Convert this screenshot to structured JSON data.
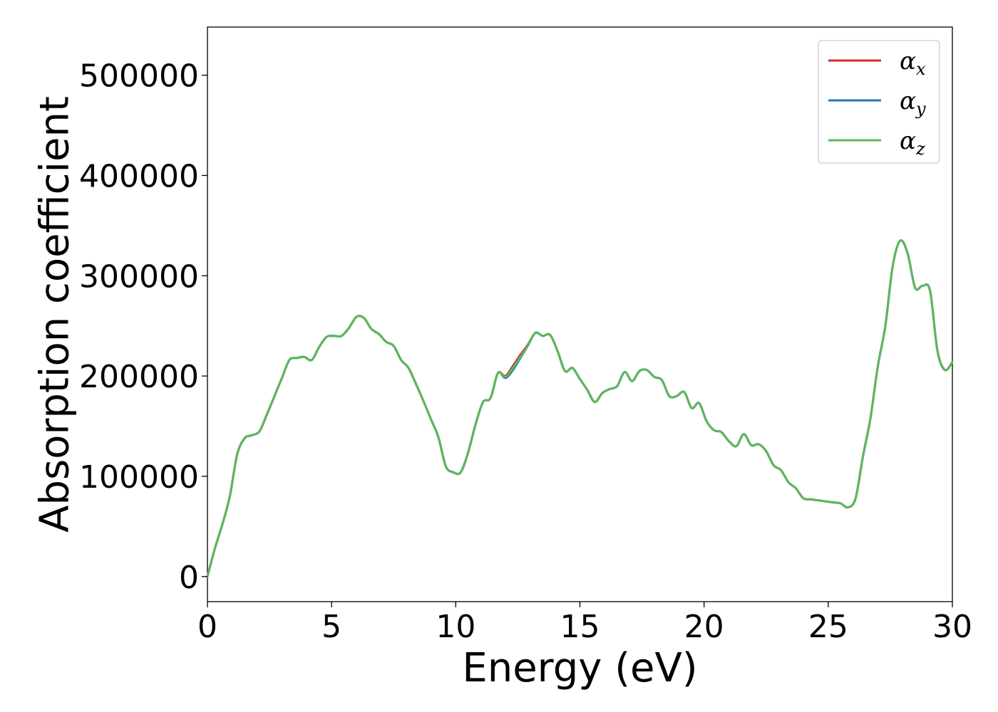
{
  "chart_data": {
    "type": "line",
    "xlabel": "Energy (eV)",
    "ylabel": "Absorption coefficient",
    "xlim": [
      0,
      30
    ],
    "ylim": [
      -25000,
      548000
    ],
    "xticks": [
      0,
      5,
      10,
      15,
      20,
      25,
      30
    ],
    "yticks": [
      0,
      100000,
      200000,
      300000,
      400000,
      500000
    ],
    "xtick_labels": [
      "0",
      "5",
      "10",
      "15",
      "20",
      "25",
      "30"
    ],
    "ytick_labels": [
      "0",
      "100000",
      "200000",
      "300000",
      "400000",
      "500000"
    ],
    "grid": false,
    "legend_position": "top-right",
    "x": [
      0,
      0.3,
      0.6,
      0.9,
      1.2,
      1.5,
      1.8,
      2.1,
      2.4,
      2.7,
      3.0,
      3.3,
      3.6,
      3.9,
      4.2,
      4.5,
      4.8,
      5.1,
      5.4,
      5.7,
      6.0,
      6.3,
      6.6,
      6.9,
      7.2,
      7.5,
      7.8,
      8.1,
      8.4,
      8.7,
      9.0,
      9.3,
      9.6,
      9.9,
      10.2,
      10.5,
      10.8,
      11.1,
      11.4,
      11.7,
      12.0,
      12.3,
      12.6,
      12.9,
      13.2,
      13.5,
      13.8,
      14.1,
      14.4,
      14.7,
      15.0,
      15.3,
      15.6,
      15.9,
      16.2,
      16.5,
      16.8,
      17.1,
      17.4,
      17.7,
      18.0,
      18.3,
      18.6,
      18.9,
      19.2,
      19.5,
      19.8,
      20.1,
      20.4,
      20.7,
      21.0,
      21.3,
      21.6,
      21.9,
      22.2,
      22.5,
      22.8,
      23.1,
      23.4,
      23.7,
      24.0,
      24.3,
      24.6,
      24.9,
      25.2,
      25.5,
      25.8,
      26.1,
      26.4,
      26.7,
      27.0,
      27.3,
      27.6,
      27.9,
      28.2,
      28.5,
      28.8,
      29.1,
      29.4,
      29.7,
      30.0
    ],
    "series": [
      {
        "name": "α",
        "subscript": "x",
        "color": "#d62728",
        "values": [
          0,
          28000,
          52000,
          80000,
          122000,
          138000,
          141000,
          145000,
          162000,
          180000,
          198000,
          216000,
          218000,
          219000,
          216000,
          229000,
          239000,
          240000,
          240000,
          248000,
          259000,
          258000,
          247000,
          242000,
          234000,
          230000,
          216000,
          208000,
          192000,
          175000,
          157000,
          139000,
          110000,
          104000,
          104000,
          124000,
          152000,
          174000,
          178000,
          203000,
          200000,
          210000,
          221000,
          231000,
          243000,
          240000,
          241000,
          225000,
          205000,
          208000,
          197000,
          186000,
          174000,
          183000,
          187000,
          190000,
          204000,
          195000,
          205000,
          206000,
          199000,
          196000,
          180000,
          180000,
          184000,
          168000,
          173000,
          155000,
          146000,
          144000,
          135000,
          130000,
          142000,
          131000,
          132000,
          125000,
          111000,
          106000,
          94000,
          88000,
          78000,
          77000,
          76000,
          75000,
          74000,
          73000,
          69000,
          78000,
          120000,
          158000,
          210000,
          250000,
          310000,
          335000,
          322000,
          288000,
          290000,
          285000,
          225000,
          206000,
          214000
        ]
      },
      {
        "name": "α",
        "subscript": "y",
        "color": "#1f77b4",
        "values": [
          0,
          28000,
          52000,
          80000,
          122000,
          138000,
          141000,
          145000,
          162000,
          180000,
          198000,
          216000,
          218000,
          219000,
          216000,
          229000,
          239000,
          240000,
          240000,
          248000,
          259000,
          258000,
          247000,
          242000,
          234000,
          230000,
          216000,
          208000,
          192000,
          175000,
          157000,
          139000,
          110000,
          104000,
          104000,
          124000,
          152000,
          174000,
          178000,
          203000,
          198000,
          206000,
          218000,
          230000,
          243000,
          240000,
          241000,
          225000,
          205000,
          208000,
          197000,
          186000,
          174000,
          183000,
          187000,
          190000,
          204000,
          195000,
          205000,
          206000,
          199000,
          196000,
          180000,
          180000,
          184000,
          168000,
          173000,
          155000,
          146000,
          144000,
          135000,
          130000,
          142000,
          131000,
          132000,
          125000,
          111000,
          106000,
          94000,
          88000,
          78000,
          77000,
          76000,
          75000,
          74000,
          73000,
          69000,
          78000,
          120000,
          158000,
          210000,
          250000,
          310000,
          335000,
          322000,
          288000,
          290000,
          285000,
          225000,
          206000,
          214000
        ]
      },
      {
        "name": "α",
        "subscript": "z",
        "color": "#5cb85c",
        "values": [
          0,
          28000,
          52000,
          80000,
          122000,
          138000,
          141000,
          145000,
          162000,
          180000,
          198000,
          216000,
          218000,
          219000,
          216000,
          229000,
          239000,
          240000,
          240000,
          248000,
          259000,
          258000,
          247000,
          242000,
          234000,
          230000,
          216000,
          208000,
          192000,
          175000,
          157000,
          139000,
          110000,
          104000,
          104000,
          124000,
          152000,
          174000,
          178000,
          203000,
          199000,
          208000,
          219000,
          230000,
          243000,
          240000,
          241000,
          225000,
          205000,
          208000,
          197000,
          186000,
          174000,
          183000,
          187000,
          190000,
          204000,
          195000,
          205000,
          206000,
          199000,
          196000,
          180000,
          180000,
          184000,
          168000,
          173000,
          155000,
          146000,
          144000,
          135000,
          130000,
          142000,
          131000,
          132000,
          125000,
          111000,
          106000,
          94000,
          88000,
          78000,
          77000,
          76000,
          75000,
          74000,
          73000,
          69000,
          78000,
          120000,
          158000,
          210000,
          250000,
          310000,
          335000,
          322000,
          288000,
          290000,
          285000,
          225000,
          206000,
          214000
        ]
      }
    ]
  }
}
